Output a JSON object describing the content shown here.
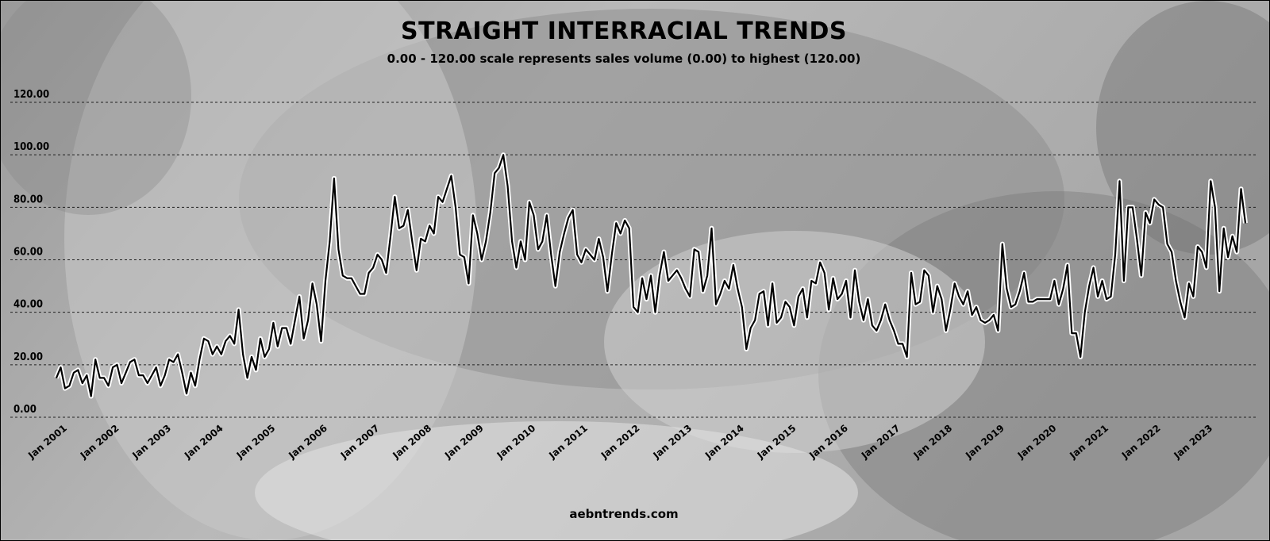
{
  "chart_data": {
    "type": "line",
    "title": "STRAIGHT INTERRACIAL TRENDS",
    "subtitle": "0.00 - 120.00 scale represents sales volume (0.00) to highest (120.00)",
    "source": "aebntrends.com",
    "xlabel": "",
    "ylabel": "",
    "ylim": [
      0,
      120
    ],
    "yticks": [
      "0.00",
      "20.00",
      "40.00",
      "60.00",
      "80.00",
      "100.00",
      "120.00"
    ],
    "xticks": [
      "Jan 2001",
      "Jan 2002",
      "Jan 2003",
      "Jan 2004",
      "Jan 2005",
      "Jan 2006",
      "Jan 2007",
      "Jan 2008",
      "Jan 2009",
      "Jan 2010",
      "Jan 2011",
      "Jan 2012",
      "Jan 2013",
      "Jan 2014",
      "Jan 2015",
      "Jan 2016",
      "Jan 2017",
      "Jan 2018",
      "Jan 2019",
      "Jan 2020",
      "Jan 2021",
      "Jan 2022",
      "Jan 2023"
    ],
    "grid": "horizontal dashed",
    "line_color": "#000000",
    "halo_color": "#ffffff",
    "x_start": "Jan 2001",
    "x_step": "1 month",
    "series": [
      {
        "values": [
          15,
          19,
          11,
          12,
          17,
          18,
          13,
          16,
          8,
          22,
          15,
          15,
          12,
          19,
          20,
          13,
          17,
          21,
          22,
          16,
          16,
          13,
          16,
          19,
          12,
          16,
          22,
          21,
          24,
          17,
          9,
          17,
          12,
          22,
          30,
          29,
          24,
          27,
          24,
          29,
          31,
          28,
          41,
          24,
          15,
          23,
          18,
          30,
          23,
          26,
          36,
          27,
          34,
          34,
          28,
          37,
          46,
          30,
          37,
          51,
          43,
          29,
          52,
          67,
          91,
          64,
          54,
          53,
          53,
          50,
          47,
          47,
          55,
          57,
          62,
          60,
          55,
          69,
          84,
          72,
          73,
          79,
          67,
          56,
          68,
          67,
          73,
          70,
          84,
          82,
          87,
          92,
          80,
          62,
          61,
          51,
          77,
          70,
          60,
          67,
          78,
          93,
          95,
          100,
          88,
          67,
          57,
          67,
          60,
          82,
          77,
          64,
          67,
          77,
          62,
          50,
          63,
          70,
          76,
          79,
          62,
          59,
          64,
          62,
          60,
          68,
          61,
          48,
          62,
          74,
          70,
          75,
          72,
          42,
          40,
          53,
          45,
          54,
          40,
          54,
          63,
          52,
          54,
          56,
          53,
          49,
          46,
          64,
          63,
          48,
          54,
          72,
          43,
          47,
          52,
          49,
          58,
          49,
          42,
          26,
          34,
          37,
          47,
          48,
          35,
          51,
          36,
          38,
          44,
          42,
          35,
          46,
          49,
          38,
          52,
          51,
          59,
          55,
          41,
          53,
          45,
          47,
          52,
          38,
          56,
          44,
          37,
          45,
          35,
          33,
          37,
          43,
          37,
          33,
          28,
          28,
          23,
          55,
          43,
          44,
          56,
          54,
          40,
          50,
          45,
          33,
          41,
          51,
          46,
          43,
          48,
          39,
          42,
          37,
          36,
          37,
          39,
          33,
          66,
          49,
          42,
          43,
          48,
          55,
          44,
          44,
          45,
          45,
          45,
          45,
          52,
          43,
          49,
          58,
          32,
          32,
          23,
          40,
          50,
          57,
          46,
          52,
          45,
          46,
          62,
          90,
          52,
          80,
          80,
          68,
          54,
          78,
          74,
          83,
          81,
          80,
          66,
          63,
          52,
          44,
          38,
          51,
          46,
          65,
          63,
          57,
          90,
          80,
          48,
          72,
          61,
          69,
          63,
          87,
          74
        ]
      }
    ]
  }
}
